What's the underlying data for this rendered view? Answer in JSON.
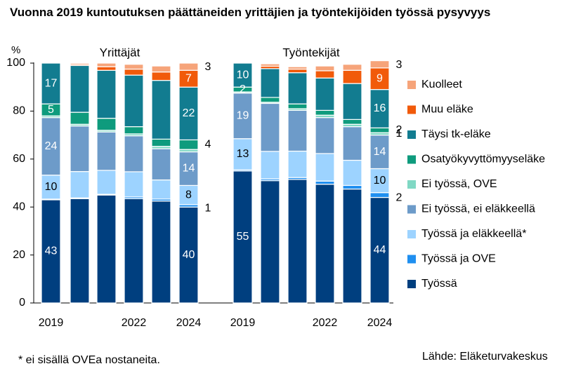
{
  "chart_data": {
    "type": "bar",
    "stacked": true,
    "title": "Vuonna 2019 kuntoutuksen päättäneiden yrittäjien ja työntekijöiden työssä pysyvyys",
    "ylabel": "%",
    "ylim": [
      0,
      100
    ],
    "yticks": [
      0,
      20,
      40,
      60,
      80,
      100
    ],
    "groups": [
      {
        "name": "Yrittäjät",
        "x_labels": [
          "2019",
          "",
          "",
          "2022",
          "",
          "2024"
        ]
      },
      {
        "name": "Työntekijät",
        "x_labels": [
          "2019",
          "",
          "",
          "2022",
          "",
          "2024"
        ]
      }
    ],
    "series": [
      {
        "name": "Työssä",
        "color": "#003f7f",
        "values": [
          [
            43,
            43.5,
            45,
            43.5,
            42.5,
            40
          ],
          [
            55,
            51,
            51.5,
            49.5,
            47.5,
            44
          ]
        ]
      },
      {
        "name": "Työssä ja OVE",
        "color": "#1f8ff0",
        "values": [
          [
            0.3,
            0.3,
            0.3,
            0.7,
            0.8,
            1
          ],
          [
            0.5,
            0.7,
            0.8,
            1.3,
            1.5,
            2
          ]
        ]
      },
      {
        "name": "Työssä ja eläkkeellä*",
        "color": "#9dd3ff",
        "values": [
          [
            10,
            11,
            10,
            10.5,
            8,
            8
          ],
          [
            13,
            11.5,
            11,
            11.5,
            10.5,
            10
          ]
        ]
      },
      {
        "name": "Ei työssä, ei eläkkeellä",
        "color": "#6d9bc9",
        "values": [
          [
            24,
            19,
            16,
            15,
            13,
            14
          ],
          [
            19,
            20,
            17,
            15,
            14,
            14
          ]
        ]
      },
      {
        "name": "Ei työssä, OVE",
        "color": "#80d8c4",
        "values": [
          [
            0.7,
            0.7,
            0.7,
            0.8,
            1,
            1
          ],
          [
            0.5,
            0.5,
            0.7,
            1,
            1,
            1
          ]
        ]
      },
      {
        "name": "Osatyökyvyttömyyseläke",
        "color": "#0e9b7d",
        "values": [
          [
            5,
            5,
            5,
            3,
            3,
            4
          ],
          [
            2,
            2,
            2,
            2,
            2,
            2
          ]
        ]
      },
      {
        "name": "Täysi tk-eläke",
        "color": "#127c90",
        "values": [
          [
            17,
            19.5,
            20,
            21.5,
            24.5,
            22
          ],
          [
            10,
            12,
            13,
            13.5,
            15,
            16
          ]
        ]
      },
      {
        "name": "Muu eläke",
        "color": "#f15a0a",
        "values": [
          [
            0,
            0.5,
            1.5,
            2.5,
            3.5,
            7
          ],
          [
            0,
            1,
            1.5,
            3,
            5.5,
            9
          ]
        ]
      },
      {
        "name": "Kuolleet",
        "color": "#f6a47a",
        "values": [
          [
            0,
            0.5,
            1.5,
            2,
            2.5,
            3
          ],
          [
            0,
            1,
            1,
            2,
            2.5,
            3
          ]
        ]
      }
    ],
    "inner_labels": [
      {
        "group": 0,
        "bar": 0,
        "series": "Työssä",
        "text": "43"
      },
      {
        "group": 0,
        "bar": 0,
        "series": "Työssä ja eläkkeellä*",
        "text": "10"
      },
      {
        "group": 0,
        "bar": 0,
        "series": "Ei työssä, ei eläkkeellä",
        "text": "24"
      },
      {
        "group": 0,
        "bar": 0,
        "series": "Osatyökyvyttömyyseläke",
        "text": "5"
      },
      {
        "group": 0,
        "bar": 0,
        "series": "Täysi tk-eläke",
        "text": "17"
      },
      {
        "group": 0,
        "bar": 5,
        "series": "Työssä",
        "text": "40"
      },
      {
        "group": 0,
        "bar": 5,
        "series": "Työssä ja eläkkeellä*",
        "text": "8"
      },
      {
        "group": 0,
        "bar": 5,
        "series": "Ei työssä, ei eläkkeellä",
        "text": "14"
      },
      {
        "group": 0,
        "bar": 5,
        "series": "Täysi tk-eläke",
        "text": "22"
      },
      {
        "group": 0,
        "bar": 5,
        "series": "Muu eläke",
        "text": "7"
      },
      {
        "group": 1,
        "bar": 0,
        "series": "Työssä",
        "text": "55"
      },
      {
        "group": 1,
        "bar": 0,
        "series": "Työssä ja eläkkeellä*",
        "text": "13"
      },
      {
        "group": 1,
        "bar": 0,
        "series": "Ei työssä, ei eläkkeellä",
        "text": "19"
      },
      {
        "group": 1,
        "bar": 0,
        "series": "Osatyökyvyttömyyseläke",
        "text": "2"
      },
      {
        "group": 1,
        "bar": 0,
        "series": "Täysi tk-eläke",
        "text": "10"
      },
      {
        "group": 1,
        "bar": 5,
        "series": "Työssä",
        "text": "44"
      },
      {
        "group": 1,
        "bar": 5,
        "series": "Työssä ja eläkkeellä*",
        "text": "10"
      },
      {
        "group": 1,
        "bar": 5,
        "series": "Ei työssä, ei eläkkeellä",
        "text": "14"
      },
      {
        "group": 1,
        "bar": 5,
        "series": "Täysi tk-eläke",
        "text": "16"
      },
      {
        "group": 1,
        "bar": 5,
        "series": "Muu eläke",
        "text": "9"
      }
    ],
    "outer_labels": [
      {
        "group": 0,
        "series": "Työssä ja OVE",
        "text": "1"
      },
      {
        "group": 0,
        "series": "Osatyökyvyttömyyseläke",
        "text": "4"
      },
      {
        "group": 0,
        "series": "Kuolleet",
        "text": "3"
      },
      {
        "group": 1,
        "series": "Työssä ja OVE",
        "text": "2"
      },
      {
        "group": 1,
        "series": "Ei työssä, OVE",
        "text": "1"
      },
      {
        "group": 1,
        "series": "Osatyökyvyttömyyseläke",
        "text": "2"
      },
      {
        "group": 1,
        "series": "Kuolleet",
        "text": "3"
      }
    ]
  },
  "footnote": "* ei sisällä OVEa nostaneita.",
  "source": "Lähde: Eläketurvakeskus"
}
